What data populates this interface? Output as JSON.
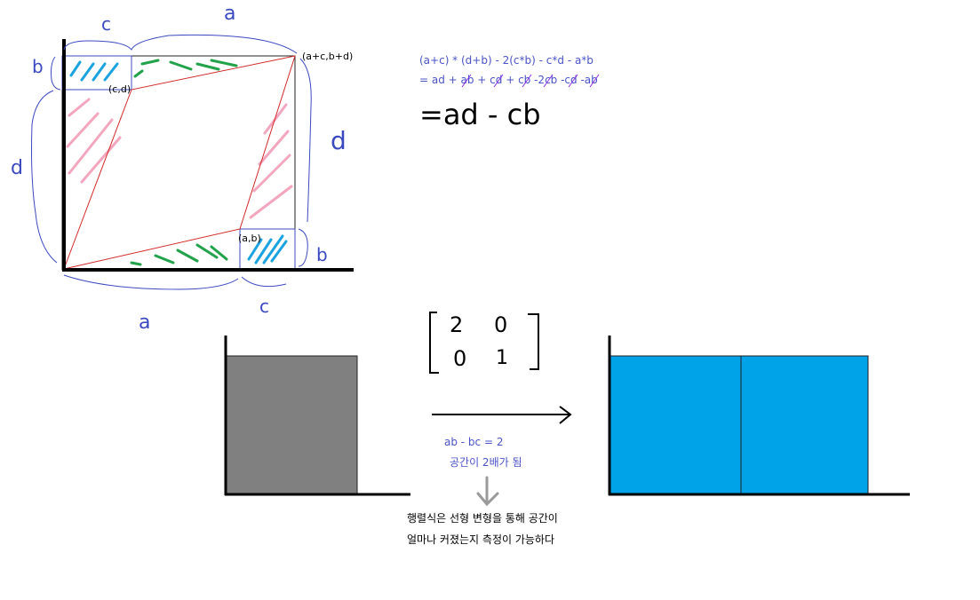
{
  "labels": {
    "top_c": "c",
    "top_a": "a",
    "left_b": "b",
    "left_d": "d",
    "right_d": "d",
    "right_b": "b",
    "bottom_a": "a",
    "bottom_c": "c",
    "point_acbd": "(a+c,b+d)",
    "point_cd": "(c,d)",
    "point_ab": "(a,b)"
  },
  "formula": {
    "line1": "(a+c) * (d+b) - 2(c*b) - c*d - a*b",
    "line2": "= ad + ab + cd + cb -2cb -cd -ab",
    "result": "=ad - cb"
  },
  "matrix": {
    "r1c1": "2",
    "r1c2": "0",
    "r2c1": "0",
    "r2c2": "1"
  },
  "transform": {
    "equation": "ab - bc = 2",
    "caption": "공간이 2배가 됨"
  },
  "note": {
    "line1": "행렬식은 선형 변형을 통해 공간이",
    "line2": "얼마나 커졌는지 측정이 가능하다"
  },
  "colors": {
    "blue_ink": "#3b49c0",
    "red_line": "#d42a2a",
    "pink_hatch": "#f3a6be",
    "green_hatch": "#22a24a",
    "cyan_hatch": "#1aa3e0",
    "gray_box": "#808080",
    "blue_box": "#00a2e8"
  }
}
